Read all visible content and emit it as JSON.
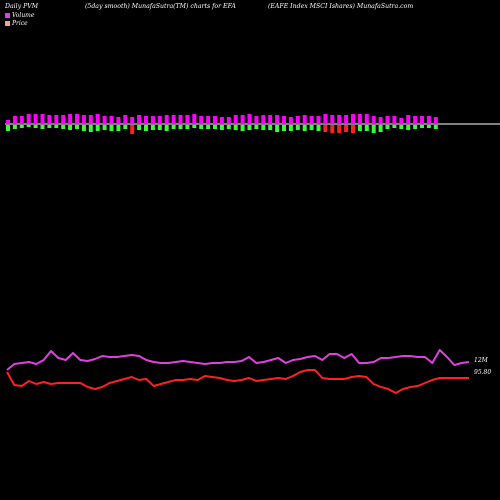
{
  "header": {
    "left": "Daily PVM",
    "center": "(5day smooth) MunafaSutra(TM) charts for EFA",
    "right": "(EAFE Index MSCI Ishares) MunafaSutra.com"
  },
  "legend": [
    {
      "label": "Volume",
      "color": "#e040e0"
    },
    {
      "label": "Price",
      "color": "#f5a0a0"
    }
  ],
  "colors": {
    "volume_line": "#e040e0",
    "price_line": "#ff2020",
    "up_bar": "#ff00ff",
    "down_bar": "#33ff33",
    "red_bar": "#ff2020"
  },
  "chart_data": {
    "type": "line",
    "end_labels": {
      "volume": "12M",
      "price": "95.80"
    },
    "bars": {
      "up": [
        4,
        8,
        8,
        10,
        10,
        10,
        9,
        9,
        9,
        10,
        10,
        9,
        9,
        10,
        8,
        8,
        7,
        9,
        7,
        9,
        8,
        8,
        8,
        9,
        9,
        9,
        9,
        10,
        8,
        8,
        8,
        7,
        7,
        9,
        9,
        10,
        8,
        9,
        9,
        9,
        8,
        7,
        8,
        9,
        8,
        8,
        10,
        9,
        9,
        9,
        10,
        10,
        10,
        8,
        7,
        8,
        8,
        6,
        9,
        8,
        8,
        8,
        7
      ],
      "down": [
        6,
        4,
        3,
        2,
        3,
        4,
        3,
        3,
        4,
        5,
        4,
        6,
        7,
        6,
        5,
        6,
        6,
        4,
        9,
        5,
        6,
        5,
        5,
        6,
        4,
        4,
        4,
        3,
        4,
        4,
        4,
        5,
        4,
        5,
        6,
        5,
        4,
        5,
        5,
        7,
        6,
        6,
        5,
        6,
        5,
        6,
        7,
        8,
        8,
        7,
        8,
        6,
        6,
        8,
        7,
        4,
        3,
        4,
        5,
        4,
        3,
        3,
        4
      ],
      "down_color": [
        "g",
        "g",
        "g",
        "g",
        "g",
        "g",
        "g",
        "g",
        "g",
        "g",
        "g",
        "g",
        "g",
        "g",
        "g",
        "g",
        "g",
        "g",
        "r",
        "g",
        "g",
        "g",
        "g",
        "g",
        "g",
        "g",
        "g",
        "g",
        "g",
        "g",
        "g",
        "g",
        "g",
        "g",
        "g",
        "g",
        "g",
        "g",
        "g",
        "g",
        "g",
        "g",
        "g",
        "g",
        "g",
        "g",
        "r",
        "r",
        "r",
        "r",
        "r",
        "g",
        "g",
        "g",
        "g",
        "g",
        "g",
        "g",
        "g",
        "g",
        "g",
        "g",
        "g"
      ]
    },
    "series": [
      {
        "values": [
          370,
          364,
          363,
          362,
          364,
          360,
          351,
          358,
          360,
          353,
          360,
          361,
          359,
          356,
          357,
          357,
          356,
          355,
          356,
          360,
          362,
          363,
          363,
          362,
          361,
          362,
          363,
          364,
          363,
          363,
          362,
          362,
          361,
          357,
          363,
          362,
          360,
          358,
          363,
          360,
          359,
          357,
          356,
          360,
          354,
          354,
          358,
          354,
          363,
          363,
          362,
          358,
          358,
          357,
          356,
          356,
          357,
          357,
          363,
          350,
          357,
          365,
          363,
          362
        ]
      },
      {
        "values": [
          372,
          385,
          386,
          381,
          384,
          382,
          384,
          383,
          383,
          383,
          383,
          387,
          389,
          387,
          383,
          381,
          379,
          377,
          380,
          379,
          386,
          384,
          382,
          380,
          380,
          379,
          380,
          376,
          377,
          378,
          380,
          381,
          380,
          378,
          381,
          380,
          379,
          378,
          379,
          376,
          372,
          370,
          370,
          378,
          379,
          379,
          379,
          377,
          376,
          377,
          384,
          387,
          389,
          393,
          389,
          387,
          386,
          383,
          380,
          378,
          378,
          378,
          378,
          378
        ]
      }
    ]
  }
}
